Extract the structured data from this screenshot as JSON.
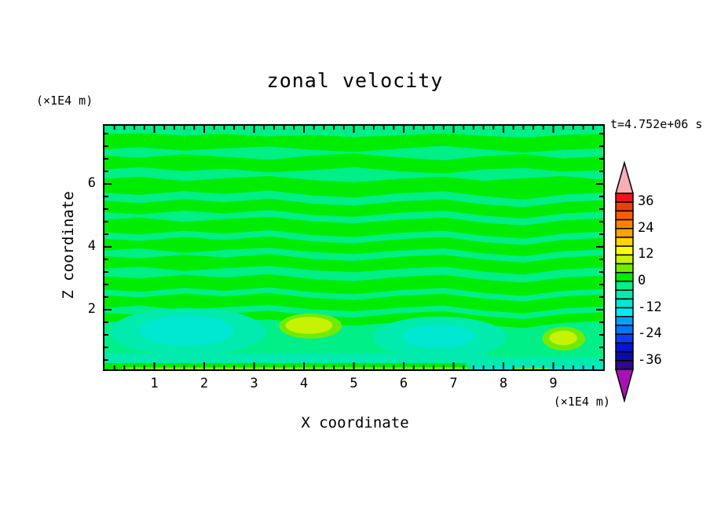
{
  "chart_data": {
    "type": "filled_contour",
    "title": "zonal velocity",
    "time_label": "t=4.752e+06 s",
    "xlabel": "X coordinate",
    "ylabel": "Z coordinate",
    "x_unit": "(×1E4 m)",
    "y_unit": "(×1E4 m)",
    "x_range": [
      0,
      10
    ],
    "z_range": [
      0.1,
      7.85
    ],
    "x_major_ticks": [
      1,
      2,
      3,
      4,
      5,
      6,
      7,
      8,
      9
    ],
    "x_minor_step": 0.2,
    "y_major_ticks": [
      2,
      4,
      6
    ],
    "y_minor_step": 0.4,
    "grid": false,
    "legend_position": "right-colorbar",
    "contour_levels": {
      "min": -40,
      "max": 40,
      "step": 4
    },
    "colorbar": {
      "labels": [
        36,
        24,
        12,
        0,
        -12,
        -24,
        -36
      ],
      "over_color": "#F9AEB5",
      "under_color": "#A911B4",
      "palette": [
        {
          "lo": 36,
          "hi": 40,
          "color": "#F3121B"
        },
        {
          "lo": 32,
          "hi": 36,
          "color": "#EE3D07"
        },
        {
          "lo": 28,
          "hi": 32,
          "color": "#FA5D00"
        },
        {
          "lo": 24,
          "hi": 28,
          "color": "#FC8102"
        },
        {
          "lo": 20,
          "hi": 24,
          "color": "#FDA301"
        },
        {
          "lo": 16,
          "hi": 20,
          "color": "#FFD300"
        },
        {
          "lo": 12,
          "hi": 16,
          "color": "#FCFE00"
        },
        {
          "lo": 8,
          "hi": 12,
          "color": "#C5F301"
        },
        {
          "lo": 4,
          "hi": 8,
          "color": "#71EB06"
        },
        {
          "lo": 0,
          "hi": 4,
          "color": "#00EC00"
        },
        {
          "lo": -4,
          "hi": 0,
          "color": "#00EF87"
        },
        {
          "lo": -8,
          "hi": -4,
          "color": "#00EBAD"
        },
        {
          "lo": -12,
          "hi": -8,
          "color": "#00E7D2"
        },
        {
          "lo": -16,
          "hi": -12,
          "color": "#00EBF3"
        },
        {
          "lo": -20,
          "hi": -16,
          "color": "#00A2F6"
        },
        {
          "lo": -24,
          "hi": -20,
          "color": "#0674FB"
        },
        {
          "lo": -28,
          "hi": -24,
          "color": "#0A3DF3"
        },
        {
          "lo": -32,
          "hi": -28,
          "color": "#0614D3"
        },
        {
          "lo": -36,
          "hi": -32,
          "color": "#0B0BA7"
        },
        {
          "lo": -40,
          "hi": -36,
          "color": "#2F0A88"
        }
      ]
    },
    "background_band": [
      -4,
      0
    ],
    "stripe_x": [
      0,
      0.7,
      1.6,
      2.4,
      3.3,
      4.2,
      5.0,
      5.9,
      6.8,
      7.6,
      8.4,
      9.2,
      10
    ],
    "regions": [
      {
        "band": [
          0,
          4
        ],
        "stripe": {
          "top": [
            7.58,
            7.62,
            7.54,
            7.59,
            7.51,
            7.56,
            7.49,
            7.55,
            7.61,
            7.53,
            7.47,
            7.56,
            7.59
          ],
          "bottom": [
            7.1,
            7.17,
            7.06,
            7.13,
            7.19,
            7.08,
            7.02,
            7.12,
            7.21,
            7.1,
            7.0,
            7.08,
            7.13
          ]
        }
      },
      {
        "band": [
          0,
          4
        ],
        "stripe": {
          "top": [
            6.9,
            6.83,
            6.94,
            6.86,
            6.77,
            6.9,
            6.97,
            6.84,
            6.75,
            6.88,
            6.95,
            6.81,
            6.88
          ],
          "bottom": [
            6.46,
            6.53,
            6.41,
            6.48,
            6.37,
            6.44,
            6.53,
            6.4,
            6.33,
            6.46,
            6.51,
            6.39,
            6.44
          ]
        }
      },
      {
        "band": [
          0,
          4
        ],
        "stripe": {
          "top": [
            6.16,
            6.23,
            6.09,
            6.18,
            6.25,
            6.12,
            6.05,
            6.16,
            6.23,
            6.1,
            6.18,
            6.25,
            6.13
          ],
          "bottom": [
            5.72,
            5.65,
            5.77,
            5.68,
            5.79,
            5.63,
            5.57,
            5.7,
            5.77,
            5.61,
            5.5,
            5.66,
            5.72
          ]
        }
      },
      {
        "band": [
          0,
          4
        ],
        "stripe": {
          "top": [
            5.46,
            5.39,
            5.51,
            5.42,
            5.53,
            5.37,
            5.31,
            5.44,
            5.51,
            5.35,
            5.26,
            5.42,
            5.48
          ],
          "bottom": [
            5.1,
            5.03,
            5.15,
            5.06,
            5.17,
            5.01,
            4.95,
            5.08,
            5.15,
            4.99,
            4.9,
            5.06,
            5.12
          ]
        }
      },
      {
        "band": [
          0,
          4
        ],
        "stripe": {
          "top": [
            4.86,
            4.93,
            4.79,
            4.88,
            4.95,
            4.81,
            4.75,
            4.86,
            4.93,
            4.77,
            4.68,
            4.84,
            4.9
          ],
          "bottom": [
            4.46,
            4.39,
            4.51,
            4.42,
            4.53,
            4.37,
            4.31,
            4.44,
            4.51,
            4.35,
            4.26,
            4.42,
            4.48
          ]
        }
      },
      {
        "band": [
          0,
          4
        ],
        "stripe": {
          "top": [
            4.26,
            4.19,
            4.31,
            4.22,
            4.33,
            4.17,
            4.11,
            4.24,
            4.31,
            4.15,
            4.06,
            4.22,
            4.28
          ],
          "bottom": [
            3.88,
            3.95,
            3.81,
            3.9,
            3.97,
            3.83,
            3.77,
            3.88,
            3.95,
            3.79,
            3.7,
            3.86,
            3.92
          ]
        }
      },
      {
        "band": [
          0,
          4
        ],
        "stripe": {
          "top": [
            3.7,
            3.63,
            3.75,
            3.66,
            3.77,
            3.61,
            3.55,
            3.68,
            3.75,
            3.59,
            3.5,
            3.66,
            3.72
          ],
          "bottom": [
            3.3,
            3.37,
            3.23,
            3.32,
            3.39,
            3.25,
            3.19,
            3.3,
            3.37,
            3.21,
            3.12,
            3.28,
            3.34
          ]
        }
      },
      {
        "band": [
          0,
          4
        ],
        "stripe": {
          "top": [
            3.06,
            2.99,
            3.11,
            3.02,
            3.13,
            2.97,
            2.91,
            3.04,
            3.11,
            2.95,
            2.86,
            3.02,
            3.08
          ],
          "bottom": [
            2.64,
            2.57,
            2.69,
            2.6,
            2.71,
            2.55,
            2.49,
            2.62,
            2.69,
            2.53,
            2.44,
            2.6,
            2.66
          ]
        }
      },
      {
        "band": [
          0,
          4
        ],
        "stripe": {
          "top": [
            2.46,
            2.39,
            2.51,
            2.42,
            2.53,
            2.37,
            2.31,
            2.44,
            2.51,
            2.35,
            2.26,
            2.42,
            2.48
          ],
          "bottom": [
            2.06,
            2.13,
            1.99,
            2.08,
            2.15,
            2.01,
            1.95,
            2.06,
            2.13,
            1.97,
            1.88,
            2.04,
            2.1
          ]
        }
      },
      {
        "band": [
          0,
          4
        ],
        "stripe": {
          "top": [
            1.9,
            1.83,
            1.95,
            1.86,
            1.97,
            1.81,
            1.75,
            1.88,
            1.95,
            1.79,
            1.7,
            1.86,
            1.92
          ],
          "bottom": [
            1.6,
            1.67,
            1.53,
            1.62,
            1.69,
            1.55,
            1.49,
            1.6,
            1.67,
            1.51,
            1.42,
            1.58,
            1.64
          ]
        }
      },
      {
        "band": [
          -8,
          -4
        ],
        "ellipse": [
          1.68,
          1.3,
          1.57,
          0.75
        ]
      },
      {
        "band": [
          -8,
          -4
        ],
        "ellipse": [
          6.72,
          1.13,
          1.34,
          0.65
        ]
      },
      {
        "band": [
          -8,
          -4
        ],
        "rect": [
          0,
          0.28,
          7.7,
          0.62
        ]
      },
      {
        "band": [
          -8,
          -4
        ],
        "rect": [
          7.3,
          0.2,
          10,
          0.5
        ]
      },
      {
        "band": [
          -12,
          -8
        ],
        "ellipse": [
          1.65,
          1.33,
          0.95,
          0.48
        ]
      },
      {
        "band": [
          -12,
          -8
        ],
        "ellipse": [
          6.7,
          1.15,
          0.72,
          0.38
        ]
      },
      {
        "band": [
          0,
          4
        ],
        "rect": [
          0,
          0.1,
          7.25,
          0.3
        ]
      },
      {
        "band": [
          0,
          4
        ],
        "rect": [
          0,
          0,
          0.42,
          0.3
        ]
      },
      {
        "band": [
          4,
          8
        ],
        "rect": [
          0.35,
          0,
          7.28,
          0.17
        ]
      },
      {
        "band": [
          4,
          8
        ],
        "ellipse": [
          4.13,
          1.48,
          0.63,
          0.4
        ]
      },
      {
        "band": [
          4,
          8
        ],
        "ellipse": [
          9.21,
          1.08,
          0.43,
          0.38
        ]
      },
      {
        "band": [
          8,
          12
        ],
        "rect": [
          0.95,
          0,
          4.05,
          0.12
        ]
      },
      {
        "band": [
          8,
          12
        ],
        "ellipse": [
          4.1,
          1.5,
          0.47,
          0.27
        ]
      },
      {
        "band": [
          8,
          12
        ],
        "ellipse": [
          9.2,
          1.1,
          0.28,
          0.23
        ]
      },
      {
        "band": [
          -12,
          -8
        ],
        "rect": [
          7.35,
          0,
          10,
          0.2
        ]
      },
      {
        "band": [
          4,
          8
        ],
        "rect": [
          8.2,
          0,
          8.9,
          0.15
        ]
      }
    ]
  }
}
